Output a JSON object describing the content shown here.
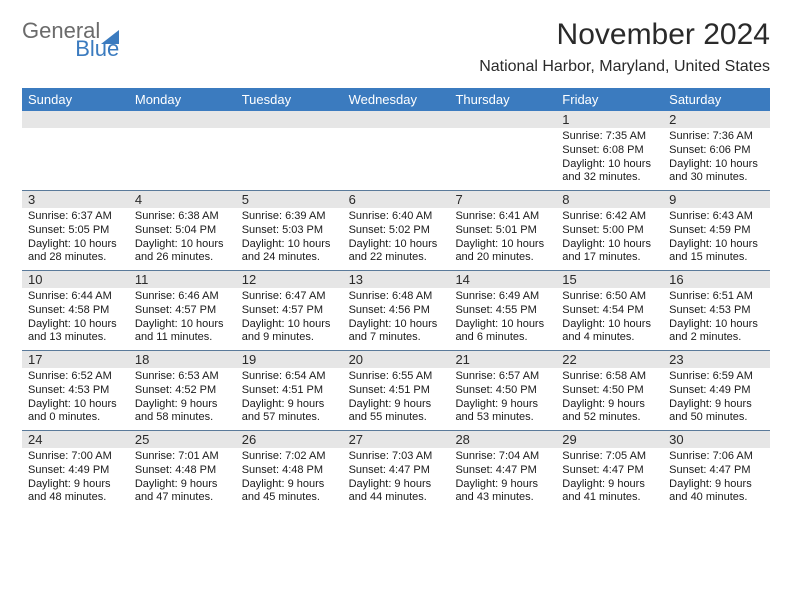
{
  "logo": {
    "part1": "General",
    "part2": "Blue"
  },
  "title": "November 2024",
  "location": "National Harbor, Maryland, United States",
  "colors": {
    "header_bar": "#3b7bbf",
    "daynum_band": "#e6e6e6",
    "rule": "#5a7a9a",
    "text": "#1a1a1a",
    "logo_gray": "#6b6b6b",
    "logo_blue": "#3b7bbf"
  },
  "daysOfWeek": [
    "Sunday",
    "Monday",
    "Tuesday",
    "Wednesday",
    "Thursday",
    "Friday",
    "Saturday"
  ],
  "weeks": [
    [
      {
        "n": "",
        "sr": "",
        "ss": "",
        "dl": ""
      },
      {
        "n": "",
        "sr": "",
        "ss": "",
        "dl": ""
      },
      {
        "n": "",
        "sr": "",
        "ss": "",
        "dl": ""
      },
      {
        "n": "",
        "sr": "",
        "ss": "",
        "dl": ""
      },
      {
        "n": "",
        "sr": "",
        "ss": "",
        "dl": ""
      },
      {
        "n": "1",
        "sr": "Sunrise: 7:35 AM",
        "ss": "Sunset: 6:08 PM",
        "dl": "Daylight: 10 hours and 32 minutes."
      },
      {
        "n": "2",
        "sr": "Sunrise: 7:36 AM",
        "ss": "Sunset: 6:06 PM",
        "dl": "Daylight: 10 hours and 30 minutes."
      }
    ],
    [
      {
        "n": "3",
        "sr": "Sunrise: 6:37 AM",
        "ss": "Sunset: 5:05 PM",
        "dl": "Daylight: 10 hours and 28 minutes."
      },
      {
        "n": "4",
        "sr": "Sunrise: 6:38 AM",
        "ss": "Sunset: 5:04 PM",
        "dl": "Daylight: 10 hours and 26 minutes."
      },
      {
        "n": "5",
        "sr": "Sunrise: 6:39 AM",
        "ss": "Sunset: 5:03 PM",
        "dl": "Daylight: 10 hours and 24 minutes."
      },
      {
        "n": "6",
        "sr": "Sunrise: 6:40 AM",
        "ss": "Sunset: 5:02 PM",
        "dl": "Daylight: 10 hours and 22 minutes."
      },
      {
        "n": "7",
        "sr": "Sunrise: 6:41 AM",
        "ss": "Sunset: 5:01 PM",
        "dl": "Daylight: 10 hours and 20 minutes."
      },
      {
        "n": "8",
        "sr": "Sunrise: 6:42 AM",
        "ss": "Sunset: 5:00 PM",
        "dl": "Daylight: 10 hours and 17 minutes."
      },
      {
        "n": "9",
        "sr": "Sunrise: 6:43 AM",
        "ss": "Sunset: 4:59 PM",
        "dl": "Daylight: 10 hours and 15 minutes."
      }
    ],
    [
      {
        "n": "10",
        "sr": "Sunrise: 6:44 AM",
        "ss": "Sunset: 4:58 PM",
        "dl": "Daylight: 10 hours and 13 minutes."
      },
      {
        "n": "11",
        "sr": "Sunrise: 6:46 AM",
        "ss": "Sunset: 4:57 PM",
        "dl": "Daylight: 10 hours and 11 minutes."
      },
      {
        "n": "12",
        "sr": "Sunrise: 6:47 AM",
        "ss": "Sunset: 4:57 PM",
        "dl": "Daylight: 10 hours and 9 minutes."
      },
      {
        "n": "13",
        "sr": "Sunrise: 6:48 AM",
        "ss": "Sunset: 4:56 PM",
        "dl": "Daylight: 10 hours and 7 minutes."
      },
      {
        "n": "14",
        "sr": "Sunrise: 6:49 AM",
        "ss": "Sunset: 4:55 PM",
        "dl": "Daylight: 10 hours and 6 minutes."
      },
      {
        "n": "15",
        "sr": "Sunrise: 6:50 AM",
        "ss": "Sunset: 4:54 PM",
        "dl": "Daylight: 10 hours and 4 minutes."
      },
      {
        "n": "16",
        "sr": "Sunrise: 6:51 AM",
        "ss": "Sunset: 4:53 PM",
        "dl": "Daylight: 10 hours and 2 minutes."
      }
    ],
    [
      {
        "n": "17",
        "sr": "Sunrise: 6:52 AM",
        "ss": "Sunset: 4:53 PM",
        "dl": "Daylight: 10 hours and 0 minutes."
      },
      {
        "n": "18",
        "sr": "Sunrise: 6:53 AM",
        "ss": "Sunset: 4:52 PM",
        "dl": "Daylight: 9 hours and 58 minutes."
      },
      {
        "n": "19",
        "sr": "Sunrise: 6:54 AM",
        "ss": "Sunset: 4:51 PM",
        "dl": "Daylight: 9 hours and 57 minutes."
      },
      {
        "n": "20",
        "sr": "Sunrise: 6:55 AM",
        "ss": "Sunset: 4:51 PM",
        "dl": "Daylight: 9 hours and 55 minutes."
      },
      {
        "n": "21",
        "sr": "Sunrise: 6:57 AM",
        "ss": "Sunset: 4:50 PM",
        "dl": "Daylight: 9 hours and 53 minutes."
      },
      {
        "n": "22",
        "sr": "Sunrise: 6:58 AM",
        "ss": "Sunset: 4:50 PM",
        "dl": "Daylight: 9 hours and 52 minutes."
      },
      {
        "n": "23",
        "sr": "Sunrise: 6:59 AM",
        "ss": "Sunset: 4:49 PM",
        "dl": "Daylight: 9 hours and 50 minutes."
      }
    ],
    [
      {
        "n": "24",
        "sr": "Sunrise: 7:00 AM",
        "ss": "Sunset: 4:49 PM",
        "dl": "Daylight: 9 hours and 48 minutes."
      },
      {
        "n": "25",
        "sr": "Sunrise: 7:01 AM",
        "ss": "Sunset: 4:48 PM",
        "dl": "Daylight: 9 hours and 47 minutes."
      },
      {
        "n": "26",
        "sr": "Sunrise: 7:02 AM",
        "ss": "Sunset: 4:48 PM",
        "dl": "Daylight: 9 hours and 45 minutes."
      },
      {
        "n": "27",
        "sr": "Sunrise: 7:03 AM",
        "ss": "Sunset: 4:47 PM",
        "dl": "Daylight: 9 hours and 44 minutes."
      },
      {
        "n": "28",
        "sr": "Sunrise: 7:04 AM",
        "ss": "Sunset: 4:47 PM",
        "dl": "Daylight: 9 hours and 43 minutes."
      },
      {
        "n": "29",
        "sr": "Sunrise: 7:05 AM",
        "ss": "Sunset: 4:47 PM",
        "dl": "Daylight: 9 hours and 41 minutes."
      },
      {
        "n": "30",
        "sr": "Sunrise: 7:06 AM",
        "ss": "Sunset: 4:47 PM",
        "dl": "Daylight: 9 hours and 40 minutes."
      }
    ]
  ]
}
